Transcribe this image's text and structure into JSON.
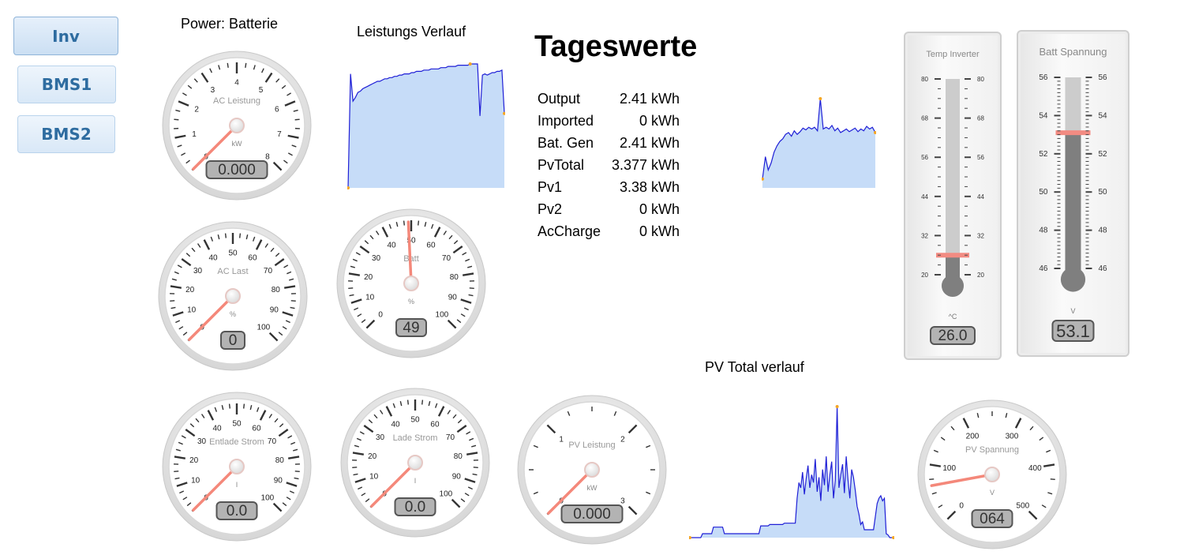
{
  "nav": {
    "inv": "Inv",
    "bms1": "BMS1",
    "bms2": "BMS2"
  },
  "captions": {
    "power": "Power: Batterie",
    "leistungs_verlauf": "Leistungs Verlauf",
    "pv_total_verlauf": "PV Total verlauf"
  },
  "tageswerte": {
    "title": "Tageswerte",
    "rows": [
      {
        "label": "Output",
        "value": "2.41 kWh"
      },
      {
        "label": "Imported",
        "value": "0 kWh"
      },
      {
        "label": "Bat. Gen",
        "value": "2.41 kWh"
      },
      {
        "label": "PvTotal",
        "value": "3.377 kWh"
      },
      {
        "label": "Pv1",
        "value": "3.38 kWh"
      },
      {
        "label": "Pv2",
        "value": "0 kWh"
      },
      {
        "label": "AcCharge",
        "value": "0 kWh"
      }
    ]
  },
  "gauges": {
    "ac_leistung": {
      "title": "AC Leistung",
      "unit": "kW",
      "min": 0,
      "max": 8,
      "value": 0,
      "display": "0.000",
      "ticks": [
        "0",
        "1",
        "2",
        "3",
        "4",
        "5",
        "6",
        "7",
        "8"
      ]
    },
    "ac_last": {
      "title": "AC Last",
      "unit": "%",
      "min": 0,
      "max": 100,
      "value": 0,
      "display": "0",
      "ticks": [
        "0",
        "10",
        "20",
        "30",
        "40",
        "50",
        "60",
        "70",
        "80",
        "90",
        "100"
      ]
    },
    "batt": {
      "title": "Batt",
      "unit": "%",
      "min": 0,
      "max": 100,
      "value": 49,
      "display": "49",
      "ticks": [
        "0",
        "10",
        "20",
        "30",
        "40",
        "50",
        "60",
        "70",
        "80",
        "90",
        "100"
      ]
    },
    "entlade_strom": {
      "title": "Entlade Strom",
      "unit": "I",
      "min": 0,
      "max": 100,
      "value": 0,
      "display": "0.0",
      "ticks": [
        "0",
        "10",
        "20",
        "30",
        "40",
        "50",
        "60",
        "70",
        "80",
        "90",
        "100"
      ]
    },
    "lade_strom": {
      "title": "Lade Strom",
      "unit": "I",
      "min": 0,
      "max": 100,
      "value": 0,
      "display": "0.0",
      "ticks": [
        "0",
        "10",
        "20",
        "30",
        "40",
        "50",
        "60",
        "70",
        "80",
        "90",
        "100"
      ]
    },
    "pv_leistung": {
      "title": "PV Leistung",
      "unit": "kW",
      "min": 0,
      "max": 3,
      "value": 0,
      "display": "0.000",
      "ticks": [
        "0",
        "1",
        "2",
        "3"
      ]
    },
    "pv_spannung": {
      "title": "PV Spannung",
      "unit": "V",
      "min": 0,
      "max": 500,
      "value": 64,
      "display": "064",
      "ticks": [
        "0",
        "100",
        "200",
        "300",
        "400",
        "500"
      ]
    }
  },
  "thermometers": {
    "temp_inverter": {
      "title": "Temp Inverter",
      "unit": "^C",
      "min": 20,
      "max": 80,
      "value": 26,
      "display": "26.0",
      "ticks": [
        "20",
        "32",
        "44",
        "56",
        "68",
        "80"
      ]
    },
    "batt_spannung": {
      "title": "Batt Spannung",
      "unit": "V",
      "min": 46,
      "max": 56,
      "value": 53.1,
      "display": "53.1",
      "ticks": [
        "46",
        "48",
        "50",
        "52",
        "54",
        "56"
      ]
    }
  },
  "colors": {
    "series_line": "#1f1fd6",
    "series_fill": "#c6dcf8",
    "marker": "#f5a623",
    "needle": "#f4887a",
    "button_text": "#2e6ca0"
  },
  "chart_data": [
    {
      "id": "leistungs_verlauf",
      "type": "area",
      "title": "Leistungs Verlauf",
      "ylim": [
        0,
        100
      ],
      "values": [
        0,
        92,
        70,
        73,
        77,
        78,
        80,
        81,
        82,
        83,
        84,
        85,
        86,
        86,
        87,
        88,
        88,
        89,
        89,
        90,
        90,
        91,
        91,
        92,
        92,
        92,
        93,
        93,
        94,
        94,
        94,
        95,
        95,
        95,
        96,
        96,
        96,
        96,
        97,
        97,
        97,
        98,
        98,
        98,
        98,
        99,
        99,
        99,
        99,
        99,
        100,
        100,
        100,
        100,
        58,
        91,
        92,
        91,
        92,
        93,
        93,
        94,
        94,
        95,
        60
      ]
    },
    {
      "id": "kleiner_verlauf",
      "type": "area",
      "title": "",
      "ylim": [
        0,
        100
      ],
      "values": [
        10,
        35,
        20,
        28,
        40,
        47,
        52,
        55,
        60,
        62,
        58,
        64,
        60,
        63,
        67,
        65,
        68,
        66,
        68,
        64,
        100,
        66,
        68,
        66,
        70,
        64,
        67,
        62,
        64,
        66,
        63,
        65,
        67,
        63,
        66,
        64,
        69,
        66,
        68,
        62
      ]
    },
    {
      "id": "pv_total_verlauf",
      "type": "area",
      "title": "PV Total verlauf",
      "ylim": [
        0,
        100
      ],
      "values": [
        0,
        0,
        0,
        0,
        0,
        0,
        0,
        3,
        3,
        3,
        3,
        3,
        3,
        8,
        8,
        8,
        8,
        8,
        8,
        3,
        3,
        3,
        3,
        3,
        3,
        3,
        3,
        3,
        3,
        3,
        3,
        3,
        3,
        3,
        3,
        3,
        3,
        3,
        3,
        9,
        9,
        9,
        9,
        9,
        10,
        10,
        10,
        10,
        10,
        10,
        10,
        10,
        11,
        11,
        11,
        11,
        11,
        11,
        11,
        30,
        42,
        38,
        50,
        33,
        45,
        55,
        38,
        48,
        42,
        60,
        35,
        46,
        28,
        52,
        40,
        62,
        35,
        48,
        58,
        30,
        44,
        100,
        38,
        48,
        56,
        34,
        62,
        44,
        30,
        52,
        46,
        36,
        24,
        18,
        10,
        12,
        6,
        6,
        6,
        6,
        6,
        6,
        16,
        26,
        30,
        32,
        28,
        30,
        3,
        2,
        0,
        0,
        0
      ]
    }
  ]
}
